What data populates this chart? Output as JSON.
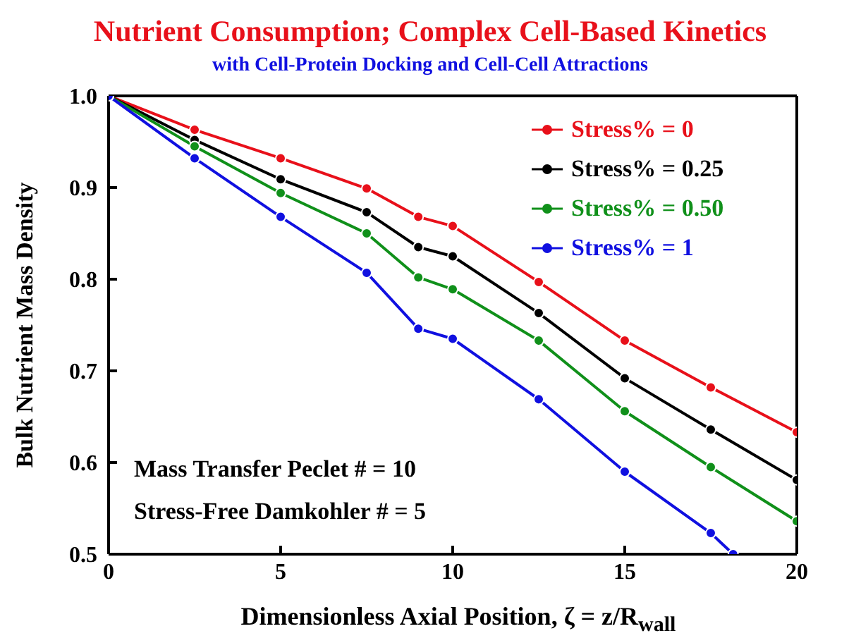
{
  "chart_data": {
    "type": "line",
    "title": "Nutrient Consumption; Complex Cell-Based Kinetics",
    "subtitle": "with Cell-Protein Docking and Cell-Cell Attractions",
    "xlabel": "Dimensionless Axial Position, ζ = z/R$_{wall}$",
    "ylabel": "Bulk Nutrient Mass Density",
    "x": [
      0,
      2.5,
      5,
      7.5,
      9,
      10,
      12.5,
      15,
      17.5,
      20
    ],
    "series": [
      {
        "name": "Stress% = 0",
        "color": "#e8101a",
        "values": [
          1.0,
          0.963,
          0.932,
          0.899,
          0.868,
          0.858,
          0.797,
          0.733,
          0.682,
          0.633
        ]
      },
      {
        "name": "Stress% = 0.25",
        "color": "#000000",
        "values": [
          1.0,
          0.952,
          0.909,
          0.873,
          0.835,
          0.825,
          0.763,
          0.692,
          0.636,
          0.581
        ]
      },
      {
        "name": "Stress% = 0.50",
        "color": "#10901a",
        "values": [
          1.0,
          0.945,
          0.894,
          0.85,
          0.802,
          0.789,
          0.733,
          0.656,
          0.595,
          0.536
        ]
      },
      {
        "name": "Stress% = 1",
        "color": "#1010e0",
        "x": [
          0,
          2.5,
          5,
          7.5,
          9,
          10,
          12.5,
          15,
          17.5,
          18.15
        ],
        "values": [
          1.0,
          0.932,
          0.868,
          0.807,
          0.746,
          0.735,
          0.669,
          0.59,
          0.523,
          0.5
        ]
      }
    ],
    "xlim": [
      0,
      20
    ],
    "xticks": [
      0,
      5,
      10,
      15,
      20
    ],
    "ylim": [
      0.5,
      1.0
    ],
    "yticks": [
      0.5,
      0.6,
      0.7,
      0.8,
      0.9,
      {
        "value": 1.0,
        "label": "1.0"
      }
    ],
    "annotations": [
      "Mass Transfer Peclet # = 10",
      "Stress-Free Damkohler # = 5"
    ],
    "legend": "top right",
    "marker": "circle",
    "line_style": "solid",
    "grid": false
  }
}
